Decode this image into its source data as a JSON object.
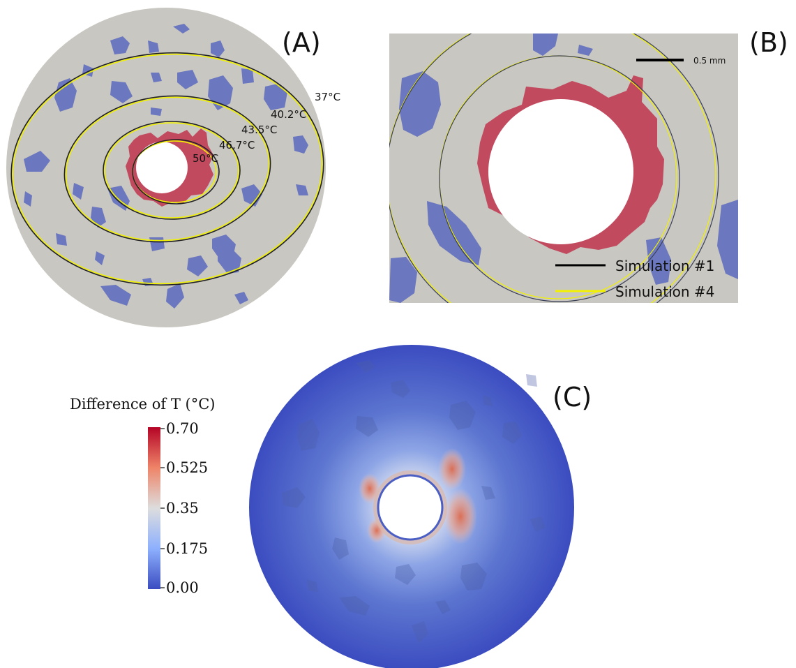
{
  "panels": {
    "a": {
      "label": "(A)",
      "isotherms": [
        "37°C",
        "40.2°C",
        "43.5°C",
        "46.7°C",
        "50°C"
      ]
    },
    "b": {
      "label": "(B)",
      "scale_bar": "0.5 mm",
      "legend": [
        {
          "name": "Simulation #1",
          "color": "#000000"
        },
        {
          "name": "Simulation #4",
          "color": "#f2f200"
        }
      ]
    },
    "c": {
      "label": "(C)",
      "colorbar": {
        "title": "Difference of T (°C)",
        "ticks": [
          "0.70",
          "0.525",
          "0.35",
          "0.175",
          "0.00"
        ]
      }
    }
  },
  "colors": {
    "tissue": "#c9c7c1",
    "vessel": "#6b77be",
    "ablation": "#c24a5f",
    "colormap_low": "#3b4cc0",
    "colormap_mid": "#dddddd",
    "colormap_high": "#b40426"
  }
}
